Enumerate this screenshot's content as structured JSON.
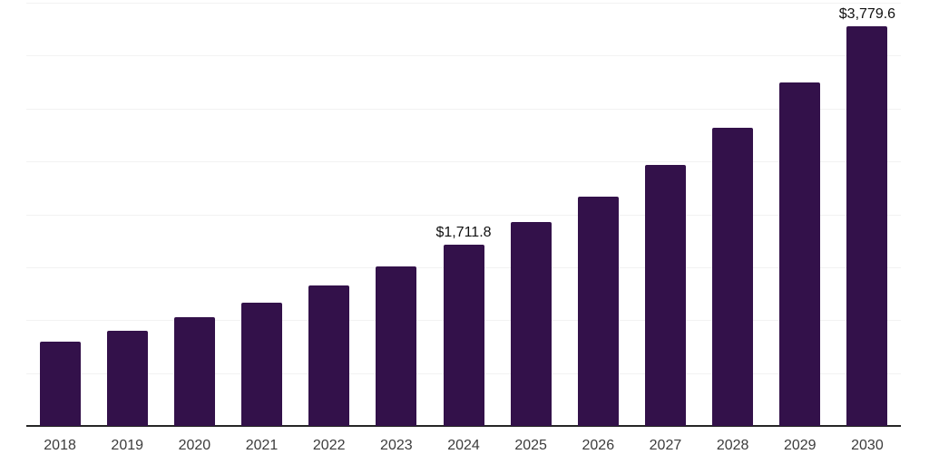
{
  "chart_data": {
    "type": "bar",
    "title": "",
    "xlabel": "",
    "ylabel": "",
    "categories": [
      "2018",
      "2019",
      "2020",
      "2021",
      "2022",
      "2023",
      "2024",
      "2025",
      "2026",
      "2027",
      "2028",
      "2029",
      "2030"
    ],
    "values": [
      795,
      900,
      1025,
      1165,
      1325,
      1505,
      1711.8,
      1925,
      2165,
      2465,
      2820,
      3245,
      3779.6
    ],
    "labeled_points": [
      {
        "category": "2024",
        "label": "$1,711.8"
      },
      {
        "category": "2030",
        "label": "$3,779.6"
      }
    ],
    "ylim": [
      0,
      4000
    ],
    "gridline_step": 500,
    "grid": "horizontal-only",
    "legend": "none",
    "colors": {
      "bar": "#33114a",
      "gridline": "#f2f2f2",
      "axis": "#262626",
      "tick_label": "#3c3c3c",
      "value_label": "#111111"
    }
  }
}
